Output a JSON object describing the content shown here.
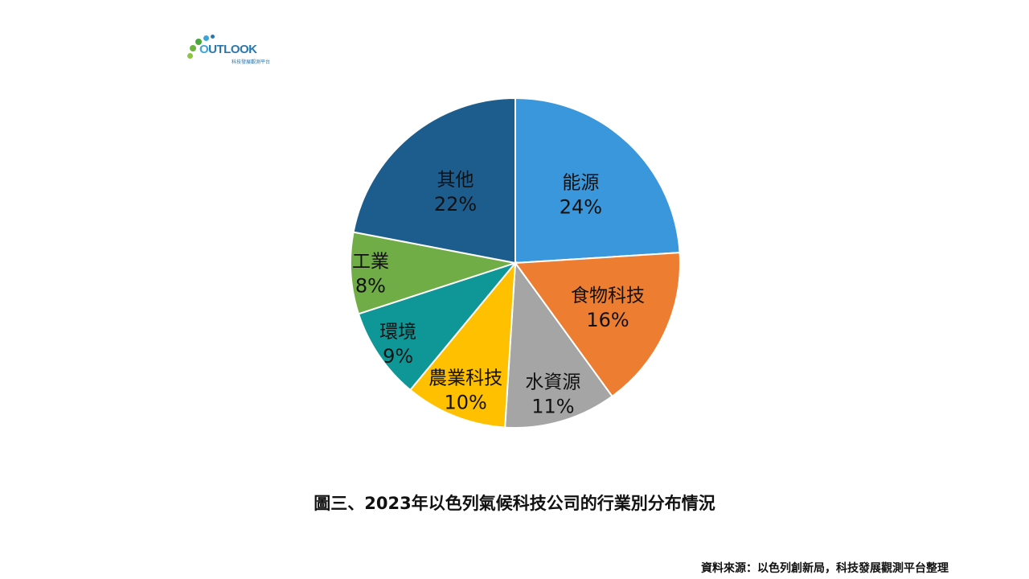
{
  "logo": {
    "name": "OUTLOOK",
    "subtitle": "科技發展觀測平台"
  },
  "chart_data": {
    "type": "pie",
    "title": "",
    "slices": [
      {
        "label": "能源",
        "value": 24,
        "display": "24%",
        "color": "#3a97db"
      },
      {
        "label": "食物科技",
        "value": 16,
        "display": "16%",
        "color": "#ed7d31"
      },
      {
        "label": "水資源",
        "value": 11,
        "display": "11%",
        "color": "#a5a5a5"
      },
      {
        "label": "農業科技",
        "value": 10,
        "display": "10%",
        "color": "#ffc000"
      },
      {
        "label": "環境",
        "value": 9,
        "display": "9%",
        "color": "#0f9696"
      },
      {
        "label": "工業",
        "value": 8,
        "display": "8%",
        "color": "#70ad47"
      },
      {
        "label": "其他",
        "value": 22,
        "display": "22%",
        "color": "#1d5d8e"
      }
    ]
  },
  "caption": "圖三、2023年以色列氣候科技公司的行業別分布情況",
  "source": "資料來源：以色列創新局，科技發展觀測平台整理"
}
